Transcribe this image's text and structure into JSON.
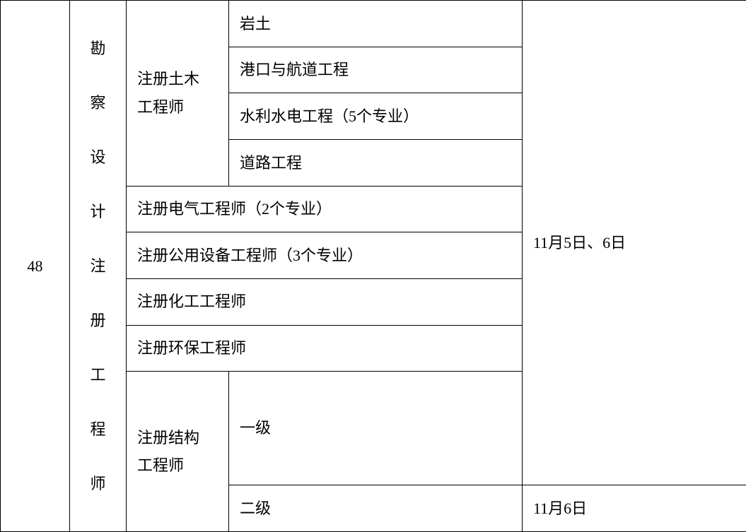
{
  "table": {
    "rowNumber": "48",
    "category": "勘察设计注册工程师",
    "civilEngineer": {
      "label": "注册土木\n工程师",
      "specialties": {
        "geotechnical": "岩土",
        "port": "港口与航道工程",
        "water": "水利水电工程（5个专业）",
        "road": "道路工程"
      }
    },
    "electrical": "注册电气工程师（2个专业）",
    "public": "注册公用设备工程师（3个专业）",
    "chemical": "注册化工工程师",
    "environmental": "注册环保工程师",
    "structural": {
      "label": "注册结构\n工程师",
      "level1": "一级",
      "level2": "二级"
    },
    "dates": {
      "main": "11月5日、6日",
      "level2": "11月6日"
    }
  },
  "styling": {
    "fontSize": 22,
    "borderColor": "#000000",
    "backgroundColor": "#ffffff",
    "textColor": "#000000",
    "fontFamily": "SimSun"
  }
}
